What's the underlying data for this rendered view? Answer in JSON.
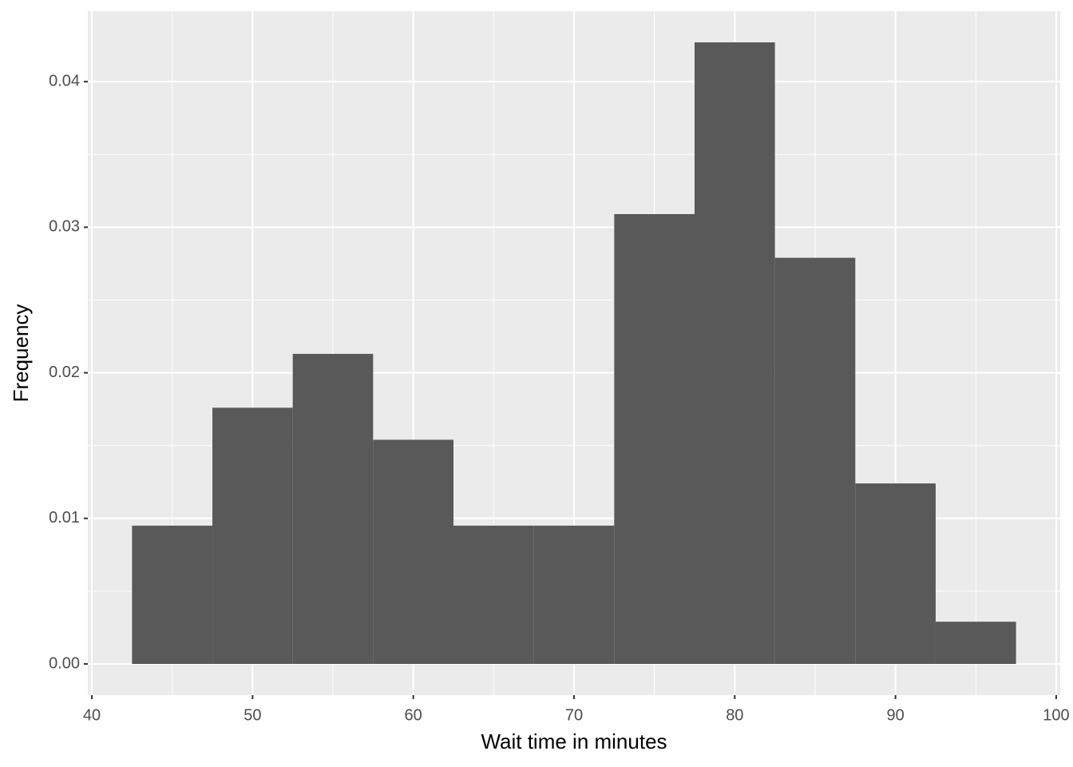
{
  "chart_data": {
    "type": "histogram",
    "x_label": "Wait time in minutes",
    "y_label": "Frequency",
    "bins": [
      42.5,
      47.5,
      52.5,
      57.5,
      62.5,
      67.5,
      72.5,
      77.5,
      82.5,
      87.5,
      92.5,
      97.5
    ],
    "values": [
      0.0095,
      0.0176,
      0.0213,
      0.0154,
      0.0095,
      0.0095,
      0.0309,
      0.0427,
      0.0279,
      0.0124,
      0.0029
    ],
    "color": "#595959",
    "xlim": [
      39.75,
      100.25
    ],
    "xticks": [
      40,
      50,
      60,
      70,
      80,
      90,
      100
    ],
    "ylim": [
      -0.00214,
      0.04484
    ],
    "yticks": [
      {
        "value": 0,
        "label": "0.00"
      },
      {
        "value": 0.01,
        "label": "0.01"
      },
      {
        "value": 0.02,
        "label": "0.02"
      },
      {
        "value": 0.03,
        "label": "0.03"
      },
      {
        "value": 0.04,
        "label": "0.04"
      }
    ],
    "grid": true
  }
}
